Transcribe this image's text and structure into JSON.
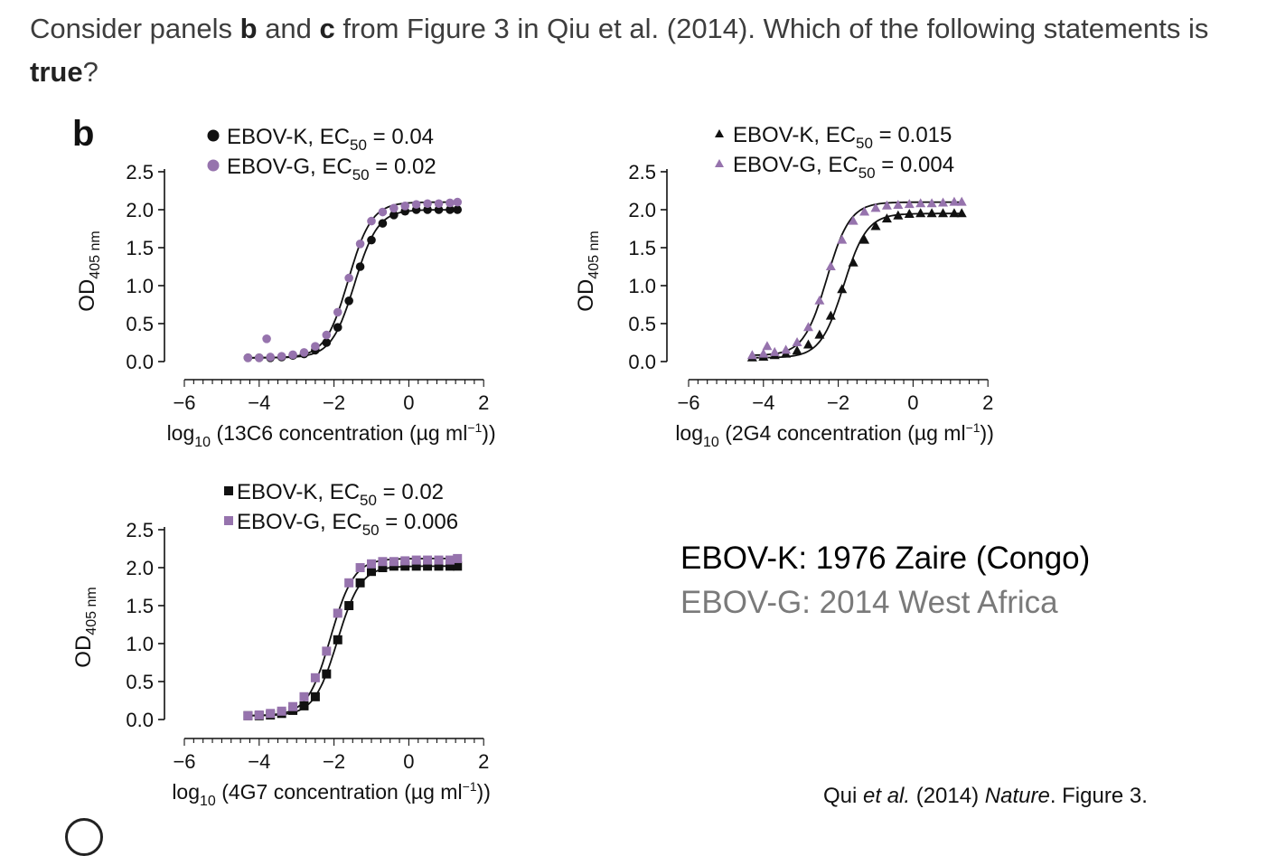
{
  "question": {
    "part1": "Consider panels ",
    "b": "b",
    "and": " and ",
    "c": "c",
    "part2": " from Figure 3 in Qiu et al. (2014). Which of the following statements is ",
    "true": "true",
    "end": "?"
  },
  "panel_label": "b",
  "strain_k": "EBOV-K: 1976 Zaire (Congo)",
  "strain_g": "EBOV-G: 2014 West Africa",
  "citation": {
    "prefix": "Qui ",
    "etal": "et al.",
    "year": " (2014) ",
    "journal": "Nature",
    "suffix": ". Figure 3."
  },
  "colors": {
    "ebov_k": "#111111",
    "ebov_g": "#9673ad"
  },
  "chart_data": [
    {
      "type": "scatter",
      "ylabel": "OD",
      "ylabel_sub": "405 nm",
      "xlabel_pre": "log",
      "xlabel_sub": "10",
      "xlabel_post": " (13C6 concentration (µg ml",
      "xlabel_sup": "−1",
      "xlabel_close": "))",
      "xlim": [
        -6,
        2
      ],
      "ylim": [
        0,
        2.5
      ],
      "xticks": [
        "−6",
        "−4",
        "−2",
        "0",
        "2"
      ],
      "yticks": [
        "0.0",
        "0.5",
        "1.0",
        "1.5",
        "2.0",
        "2.5"
      ],
      "marker": "circle",
      "fit": true,
      "series": [
        {
          "name": "EBOV-K",
          "ec50_label": "EC",
          "ec50_sub": "50",
          "ec50_value": " = 0.04",
          "color": "#111111",
          "x": [
            -4.3,
            -4.0,
            -3.7,
            -3.4,
            -3.1,
            -2.8,
            -2.5,
            -2.2,
            -1.9,
            -1.6,
            -1.3,
            -1.0,
            -0.7,
            -0.4,
            -0.1,
            0.2,
            0.5,
            0.8,
            1.1,
            1.3
          ],
          "y": [
            0.05,
            0.05,
            0.05,
            0.06,
            0.08,
            0.1,
            0.15,
            0.25,
            0.45,
            0.8,
            1.25,
            1.6,
            1.82,
            1.93,
            1.98,
            2.0,
            2.0,
            2.0,
            2.0,
            2.0
          ]
        },
        {
          "name": "EBOV-G",
          "ec50_label": "EC",
          "ec50_sub": "50",
          "ec50_value": " = 0.02",
          "color": "#9673ad",
          "x": [
            -4.3,
            -4.0,
            -3.7,
            -3.4,
            -3.1,
            -2.8,
            -2.5,
            -2.2,
            -1.9,
            -1.6,
            -1.3,
            -1.0,
            -0.7,
            -0.4,
            -0.1,
            0.2,
            0.5,
            0.8,
            1.1,
            1.3,
            -3.8
          ],
          "y": [
            0.05,
            0.05,
            0.06,
            0.07,
            0.09,
            0.12,
            0.2,
            0.35,
            0.65,
            1.1,
            1.55,
            1.85,
            1.97,
            2.02,
            2.05,
            2.07,
            2.08,
            2.08,
            2.09,
            2.1,
            0.3
          ]
        }
      ]
    },
    {
      "type": "scatter",
      "ylabel": "OD",
      "ylabel_sub": "405 nm",
      "xlabel_pre": "log",
      "xlabel_sub": "10",
      "xlabel_post": " (2G4 concentration (µg ml",
      "xlabel_sup": "−1",
      "xlabel_close": "))",
      "xlim": [
        -6,
        2
      ],
      "ylim": [
        0,
        2.5
      ],
      "xticks": [
        "−6",
        "−4",
        "−2",
        "0",
        "2"
      ],
      "yticks": [
        "0.0",
        "0.5",
        "1.0",
        "1.5",
        "2.0",
        "2.5"
      ],
      "marker": "triangle",
      "fit": true,
      "series": [
        {
          "name": "EBOV-K",
          "ec50_label": "EC",
          "ec50_sub": "50",
          "ec50_value": " = 0.015",
          "color": "#111111",
          "x": [
            -4.3,
            -4.0,
            -3.7,
            -3.4,
            -3.1,
            -2.8,
            -2.5,
            -2.2,
            -1.9,
            -1.6,
            -1.3,
            -1.0,
            -0.7,
            -0.4,
            -0.1,
            0.2,
            0.5,
            0.8,
            1.1,
            1.3
          ],
          "y": [
            0.05,
            0.06,
            0.08,
            0.1,
            0.14,
            0.22,
            0.35,
            0.6,
            0.95,
            1.3,
            1.6,
            1.78,
            1.88,
            1.92,
            1.94,
            1.95,
            1.95,
            1.95,
            1.95,
            1.95
          ]
        },
        {
          "name": "EBOV-G",
          "ec50_label": "EC",
          "ec50_sub": "50",
          "ec50_value": " = 0.004",
          "color": "#9673ad",
          "x": [
            -4.3,
            -4.0,
            -3.7,
            -3.4,
            -3.1,
            -2.8,
            -2.5,
            -2.2,
            -1.9,
            -1.6,
            -1.3,
            -1.0,
            -0.7,
            -0.4,
            -0.1,
            0.2,
            0.5,
            0.8,
            1.1,
            1.3,
            -3.9
          ],
          "y": [
            0.08,
            0.1,
            0.12,
            0.15,
            0.25,
            0.45,
            0.8,
            1.25,
            1.6,
            1.85,
            1.97,
            2.02,
            2.05,
            2.06,
            2.07,
            2.08,
            2.08,
            2.09,
            2.1,
            2.1,
            0.2
          ]
        }
      ]
    },
    {
      "type": "scatter",
      "ylabel": "OD",
      "ylabel_sub": "405 nm",
      "xlabel_pre": "log",
      "xlabel_sub": "10",
      "xlabel_post": " (4G7 concentration (µg ml",
      "xlabel_sup": "−1",
      "xlabel_close": "))",
      "xlim": [
        -6,
        2
      ],
      "ylim": [
        0,
        2.5
      ],
      "xticks": [
        "−6",
        "−4",
        "−2",
        "0",
        "2"
      ],
      "yticks": [
        "0.0",
        "0.5",
        "1.0",
        "1.5",
        "2.0",
        "2.5"
      ],
      "marker": "square",
      "fit": true,
      "series": [
        {
          "name": "EBOV-K",
          "ec50_label": "EC",
          "ec50_sub": "50",
          "ec50_value": " = 0.02",
          "color": "#111111",
          "x": [
            -4.3,
            -4.0,
            -3.7,
            -3.4,
            -3.1,
            -2.8,
            -2.5,
            -2.2,
            -1.9,
            -1.6,
            -1.3,
            -1.0,
            -0.7,
            -0.4,
            -0.1,
            0.2,
            0.5,
            0.8,
            1.1,
            1.3
          ],
          "y": [
            0.05,
            0.05,
            0.06,
            0.08,
            0.12,
            0.18,
            0.3,
            0.6,
            1.05,
            1.5,
            1.8,
            1.95,
            2.0,
            2.02,
            2.02,
            2.02,
            2.02,
            2.02,
            2.02,
            2.02
          ]
        },
        {
          "name": "EBOV-G",
          "ec50_label": "EC",
          "ec50_sub": "50",
          "ec50_value": " = 0.006",
          "color": "#9673ad",
          "x": [
            -4.3,
            -4.0,
            -3.7,
            -3.4,
            -3.1,
            -2.8,
            -2.5,
            -2.2,
            -1.9,
            -1.6,
            -1.3,
            -1.0,
            -0.7,
            -0.4,
            -0.1,
            0.2,
            0.5,
            0.8,
            1.1,
            1.3
          ],
          "y": [
            0.05,
            0.06,
            0.08,
            0.11,
            0.17,
            0.3,
            0.55,
            0.9,
            1.4,
            1.8,
            2.0,
            2.05,
            2.08,
            2.08,
            2.09,
            2.1,
            2.1,
            2.1,
            2.1,
            2.12
          ]
        }
      ]
    }
  ]
}
